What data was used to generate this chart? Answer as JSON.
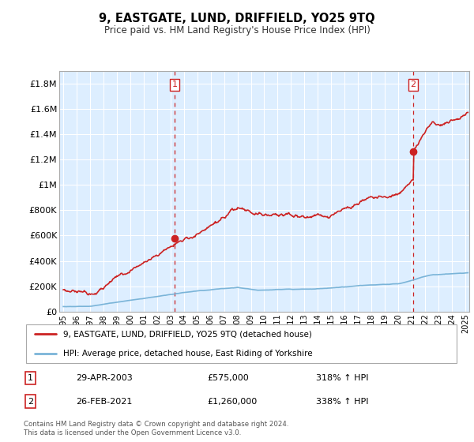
{
  "title": "9, EASTGATE, LUND, DRIFFIELD, YO25 9TQ",
  "subtitle": "Price paid vs. HM Land Registry's House Price Index (HPI)",
  "ylim": [
    0,
    1900000
  ],
  "yticks": [
    0,
    200000,
    400000,
    600000,
    800000,
    1000000,
    1200000,
    1400000,
    1600000,
    1800000
  ],
  "ytick_labels": [
    "£0",
    "£200K",
    "£400K",
    "£600K",
    "£800K",
    "£1M",
    "£1.2M",
    "£1.4M",
    "£1.6M",
    "£1.8M"
  ],
  "hpi_color": "#7ab4d8",
  "price_color": "#cc2222",
  "vline_color": "#cc2222",
  "plot_bg_color": "#ddeeff",
  "bg_color": "#ffffff",
  "grid_color": "#ffffff",
  "sale1_year": 2003.32,
  "sale1_price": 575000,
  "sale2_year": 2021.12,
  "sale2_price": 1260000,
  "legend_label1": "9, EASTGATE, LUND, DRIFFIELD, YO25 9TQ (detached house)",
  "legend_label2": "HPI: Average price, detached house, East Riding of Yorkshire",
  "table_label1": "1",
  "table_date1": "29-APR-2003",
  "table_price1": "£575,000",
  "table_hpi1": "318% ↑ HPI",
  "table_label2": "2",
  "table_date2": "26-FEB-2021",
  "table_price2": "£1,260,000",
  "table_hpi2": "338% ↑ HPI",
  "footer": "Contains HM Land Registry data © Crown copyright and database right 2024.\nThis data is licensed under the Open Government Licence v3.0.",
  "xlim_start": 1994.7,
  "xlim_end": 2025.3
}
